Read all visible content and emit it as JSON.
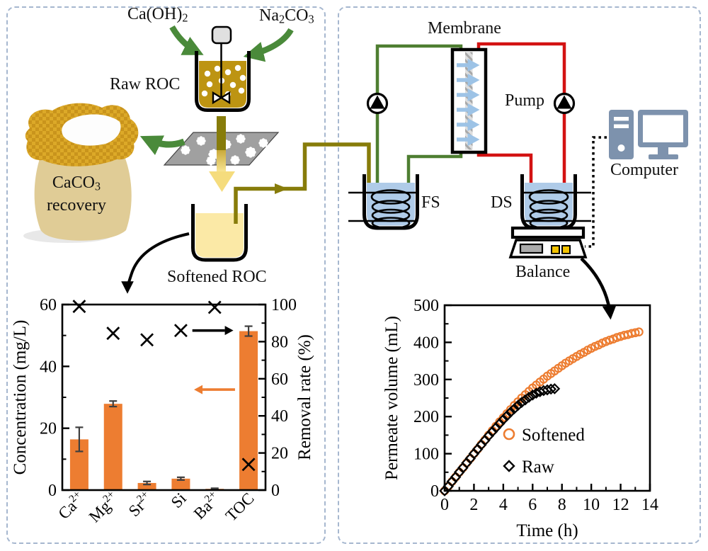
{
  "labels": {
    "ca_oh2": [
      {
        "t": "Ca(OH)"
      },
      {
        "t": "2",
        "s": "sub"
      }
    ],
    "na2co3": [
      {
        "t": "Na"
      },
      {
        "t": "2",
        "s": "sub"
      },
      {
        "t": "CO"
      },
      {
        "t": "3",
        "s": "sub"
      }
    ],
    "raw_roc": "Raw ROC",
    "caco3_line1": [
      {
        "t": "CaCO"
      },
      {
        "t": "3",
        "s": "sub"
      }
    ],
    "caco3_line2": "recovery",
    "softened_roc": "Softened ROC",
    "membrane": "Membrane",
    "pump": "Pump",
    "fs": "FS",
    "ds": "DS",
    "balance": "Balance",
    "computer": "Computer"
  },
  "colors": {
    "orange": "#ED7D31",
    "olive_pipe": "#877C0A",
    "green_pipe": "#4E7E31",
    "red_pipe": "#D31212",
    "green_arrow": "#4A8A3A",
    "water_blue": "#AFCBE8",
    "membrane_arrow_blue": "#9DC3E6",
    "raw_liquid": "#BD9412",
    "softened_liquid": "#FBE9A6",
    "bag_body": "#E0CC96",
    "bag_rim": "#DCA928",
    "computer_icon": "#7D92AD",
    "button_yellow": "#F2C200",
    "display_gray": "#ABABAB",
    "filter_gray": "#A0A0A0",
    "stirrer_cap_gray": "#E0E0E0",
    "panel_border": "#A6B7CF",
    "black": "#000000"
  },
  "chart_data": [
    {
      "type": "bar",
      "title": "",
      "categories": [
        "Ca2+",
        "Mg2+",
        "Sr2+",
        "Si",
        "Ba2+",
        "TOC"
      ],
      "categories_rich": [
        [
          {
            "t": "Ca"
          },
          {
            "t": "2+",
            "s": "sup"
          }
        ],
        [
          {
            "t": "Mg"
          },
          {
            "t": "2+",
            "s": "sup"
          }
        ],
        [
          {
            "t": "Sr"
          },
          {
            "t": "2+",
            "s": "sup"
          }
        ],
        [
          {
            "t": "Si"
          }
        ],
        [
          {
            "t": "Ba"
          },
          {
            "t": "2+",
            "s": "sup"
          }
        ],
        [
          {
            "t": "TOC"
          }
        ]
      ],
      "series": [
        {
          "name": "Concentration",
          "plot": "bar",
          "axis": "left",
          "color": "#ED7D31",
          "values": [
            16.4,
            27.9,
            2.3,
            3.7,
            0.4,
            51.4
          ],
          "errors": [
            3.9,
            0.9,
            0.5,
            0.45,
            0.2,
            1.6
          ]
        },
        {
          "name": "Removal rate",
          "plot": "x-marker",
          "axis": "right",
          "color": "#000000",
          "values": [
            99,
            84.5,
            81,
            86,
            98.5,
            13.8
          ]
        }
      ],
      "left_axis": {
        "label": "Concentration (mg/L)",
        "min": 0,
        "max": 60,
        "ticks": [
          0,
          20,
          40,
          60
        ],
        "minor_step": 10
      },
      "right_axis": {
        "label": "Removal rate (%)",
        "min": 0,
        "max": 100,
        "ticks": [
          0,
          20,
          40,
          60,
          80,
          100
        ],
        "minor_step": 10
      },
      "grid": false,
      "annotations": [
        {
          "name": "removal-direction-arrow",
          "color": "#000000",
          "axis": "right",
          "y": 86,
          "x_from": 0.64,
          "x_to": 0.8
        },
        {
          "name": "concentration-direction-arrow",
          "color": "#ED7D31",
          "axis": "left",
          "y": 32.5,
          "x_from": 0.85,
          "x_to": 0.69
        }
      ]
    },
    {
      "type": "scatter",
      "title": "",
      "series": [
        {
          "name": "Softened",
          "marker": "circle",
          "color": "#ED7D31",
          "x": [
            0,
            0.25,
            0.5,
            0.75,
            1,
            1.25,
            1.5,
            1.75,
            2,
            2.25,
            2.5,
            2.75,
            3,
            3.25,
            3.5,
            3.75,
            4,
            4.25,
            4.5,
            4.75,
            5,
            5.25,
            5.5,
            5.75,
            6,
            6.25,
            6.5,
            6.75,
            7,
            7.25,
            7.5,
            7.75,
            8,
            8.25,
            8.5,
            8.75,
            9,
            9.25,
            9.5,
            9.75,
            10,
            10.25,
            10.5,
            10.75,
            11,
            11.25,
            11.5,
            11.75,
            12,
            12.25,
            12.5,
            12.75,
            13,
            13.25
          ],
          "y": [
            0,
            12,
            25,
            37,
            50,
            62,
            75,
            87,
            100,
            112,
            125,
            137,
            150,
            162,
            174,
            186,
            197,
            208,
            219,
            230,
            240,
            250,
            259,
            268,
            277,
            285,
            293,
            301,
            309,
            316,
            323,
            330,
            337,
            344,
            350,
            356,
            362,
            368,
            373,
            379,
            384,
            389,
            393,
            398,
            402,
            406,
            409,
            413,
            416,
            419,
            421,
            424,
            426,
            428
          ]
        },
        {
          "name": "Raw",
          "marker": "diamond",
          "color": "#000000",
          "x": [
            0,
            0.25,
            0.5,
            0.75,
            1,
            1.25,
            1.5,
            1.75,
            2,
            2.25,
            2.5,
            2.75,
            3,
            3.25,
            3.5,
            3.75,
            4,
            4.25,
            4.5,
            4.75,
            5,
            5.25,
            5.5,
            5.75,
            6,
            6.25,
            6.5,
            6.75,
            7,
            7.25,
            7.5
          ],
          "y": [
            0,
            12,
            25,
            37,
            50,
            62,
            75,
            87,
            100,
            112,
            124,
            136,
            148,
            159,
            170,
            181,
            192,
            202,
            212,
            221,
            230,
            238,
            245,
            252,
            258,
            263,
            267,
            270,
            272,
            274,
            275
          ]
        }
      ],
      "x_axis": {
        "label": "Time (h)",
        "min": 0,
        "max": 14,
        "ticks": [
          0,
          2,
          4,
          6,
          8,
          10,
          12,
          14
        ],
        "minor_step": 1
      },
      "y_axis": {
        "label": "Permeate volume (mL)",
        "min": 0,
        "max": 500,
        "ticks": [
          0,
          100,
          200,
          300,
          400,
          500
        ],
        "minor_step": 50
      },
      "legend": {
        "position": "inside-right"
      },
      "grid": false
    }
  ]
}
